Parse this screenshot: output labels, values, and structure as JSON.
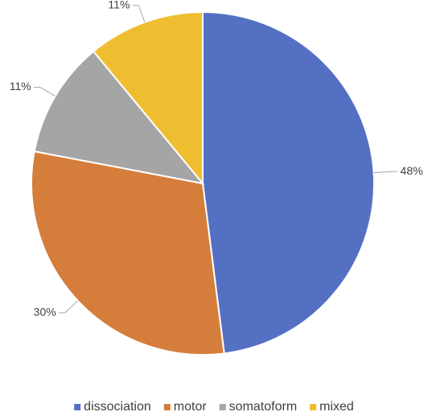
{
  "chart_data": {
    "type": "pie",
    "categories": [
      "dissociation",
      "motor",
      "somatoform",
      "mixed"
    ],
    "values": [
      48,
      30,
      11,
      11
    ],
    "value_labels": [
      "48%",
      "30%",
      "11%",
      "11%"
    ],
    "colors": [
      "#5470c3",
      "#d57d3b",
      "#a5a5a5",
      "#efbe30"
    ],
    "legend": "bottom"
  }
}
